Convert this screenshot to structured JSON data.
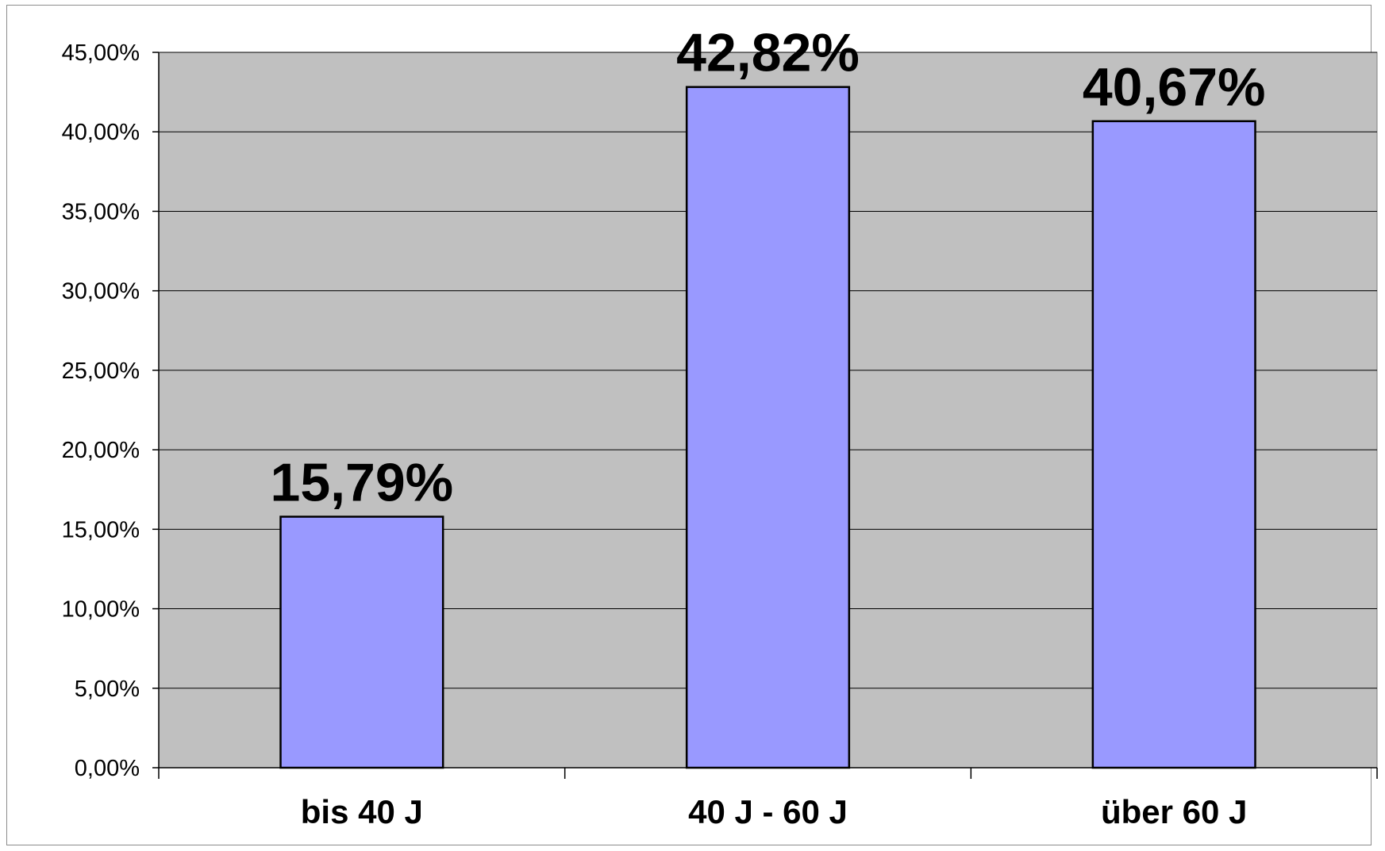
{
  "chart_data": {
    "type": "bar",
    "title": "",
    "xlabel": "",
    "ylabel": "",
    "categories": [
      "bis 40 J",
      "40 J - 60 J",
      "über 60 J"
    ],
    "values": [
      15.79,
      42.82,
      40.67
    ],
    "data_labels": [
      "15,79%",
      "42,82%",
      "40,67%"
    ],
    "ylim": [
      0,
      45
    ],
    "yticks": [
      0,
      5,
      10,
      15,
      20,
      25,
      30,
      35,
      40,
      45
    ],
    "ytick_labels": [
      "0,00%",
      "5,00%",
      "10,00%",
      "15,00%",
      "20,00%",
      "25,00%",
      "30,00%",
      "35,00%",
      "40,00%",
      "45,00%"
    ],
    "grid": true,
    "legend": "none",
    "colors": {
      "bar_fill": "#9999ff",
      "bar_stroke": "#000000",
      "plot_background": "#c0c0c0",
      "gridline": "#000000"
    }
  }
}
